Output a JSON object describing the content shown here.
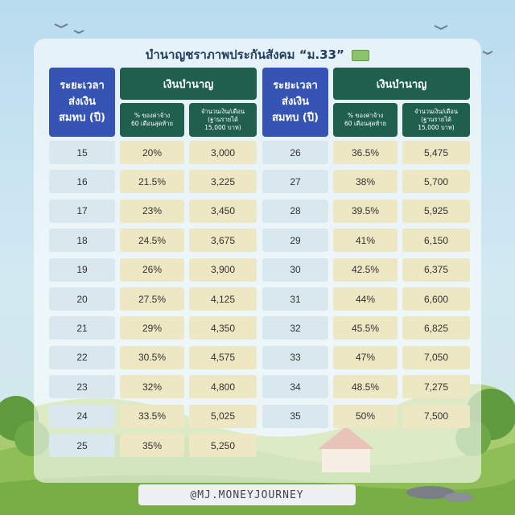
{
  "title": "บำนาญชราภาพประกันสังคม “ม.33”",
  "headers": {
    "years": "ระยะเวลา\nส่งเงิน\nสมทบ (ปี)",
    "pension": "เงินบำนาญ",
    "pct": "% ของค่าจ้าง\n60 เดือนสุดท้าย",
    "amount": "จำนวนเงิน/เดือน\n(ฐานรายได้\n15,000 บาท)"
  },
  "left_rows": [
    {
      "year": "15",
      "pct": "20%",
      "amount": "3,000"
    },
    {
      "year": "16",
      "pct": "21.5%",
      "amount": "3,225"
    },
    {
      "year": "17",
      "pct": "23%",
      "amount": "3,450"
    },
    {
      "year": "18",
      "pct": "24.5%",
      "amount": "3,675"
    },
    {
      "year": "19",
      "pct": "26%",
      "amount": "3,900"
    },
    {
      "year": "20",
      "pct": "27.5%",
      "amount": "4,125"
    },
    {
      "year": "21",
      "pct": "29%",
      "amount": "4,350"
    },
    {
      "year": "22",
      "pct": "30.5%",
      "amount": "4,575"
    },
    {
      "year": "23",
      "pct": "32%",
      "amount": "4,800"
    },
    {
      "year": "24",
      "pct": "33.5%",
      "amount": "5,025"
    },
    {
      "year": "25",
      "pct": "35%",
      "amount": "5,250"
    }
  ],
  "right_rows": [
    {
      "year": "26",
      "pct": "36.5%",
      "amount": "5,475"
    },
    {
      "year": "27",
      "pct": "38%",
      "amount": "5,700"
    },
    {
      "year": "28",
      "pct": "39.5%",
      "amount": "5,925"
    },
    {
      "year": "29",
      "pct": "41%",
      "amount": "6,150"
    },
    {
      "year": "30",
      "pct": "42.5%",
      "amount": "6,375"
    },
    {
      "year": "31",
      "pct": "44%",
      "amount": "6,600"
    },
    {
      "year": "32",
      "pct": "45.5%",
      "amount": "6,825"
    },
    {
      "year": "33",
      "pct": "47%",
      "amount": "7,050"
    },
    {
      "year": "34",
      "pct": "48.5%",
      "amount": "7,275"
    },
    {
      "year": "35",
      "pct": "50%",
      "amount": "7,500"
    }
  ],
  "footer": "@MJ.MONEYJOURNEY",
  "icons": {
    "title": "money-icon"
  },
  "colors": {
    "year_header": "#3554b3",
    "pension_header": "#1f5f4c",
    "year_cell": "#d9e8ef",
    "value_cell": "#eee7c3"
  }
}
